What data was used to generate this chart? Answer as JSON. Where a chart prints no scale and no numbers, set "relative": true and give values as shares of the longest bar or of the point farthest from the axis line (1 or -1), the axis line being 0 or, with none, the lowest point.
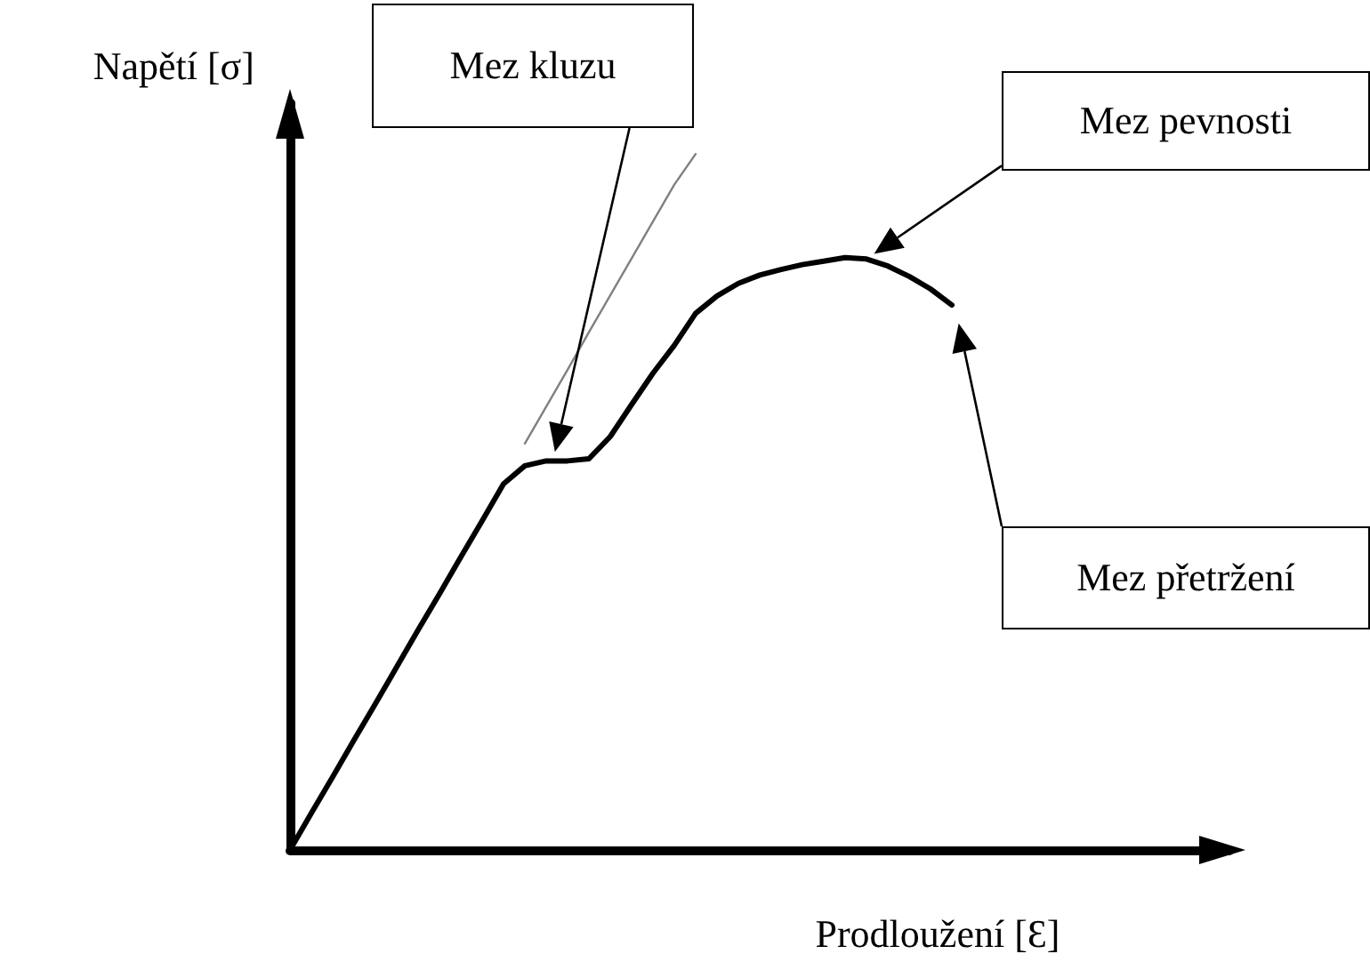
{
  "chart_data": {
    "type": "line",
    "relative": true,
    "xlabel": "Prodloužení [Ɛ]",
    "ylabel": "Napětí [σ]",
    "tick_labels": false,
    "grid": false,
    "marker": "none",
    "line_style": "solid",
    "categories": [
      null,
      null,
      null,
      null,
      null,
      null,
      null,
      null,
      null,
      null,
      null,
      null,
      null,
      null,
      null,
      null,
      null,
      null,
      null,
      null,
      null,
      null,
      null,
      null,
      null,
      null,
      null,
      null,
      null,
      null,
      null,
      null,
      null,
      null,
      null,
      null,
      null,
      null,
      null,
      null,
      null,
      null,
      null,
      null,
      null
    ],
    "series": [
      {
        "color": "#000000",
        "values": [
          0,
          0.053,
          0.105,
          0.158,
          0.21,
          0.263,
          0.316,
          0.368,
          0.421,
          0.473,
          0.526,
          0.552,
          0.559,
          0.559,
          0.562,
          0.594,
          0.64,
          0.685,
          0.725,
          0.771,
          0.796,
          0.814,
          0.826,
          0.834,
          0.841,
          0.846,
          0.851,
          0.849,
          0.839,
          0.824,
          0.806,
          0.783,
          null,
          null,
          null,
          null,
          null,
          null,
          null,
          null,
          null,
          null,
          null,
          null,
          null
        ]
      },
      {
        "color": "#808080",
        "values": [
          null,
          null,
          null,
          null,
          null,
          null,
          null,
          null,
          null,
          null,
          null,
          0.584,
          0.637,
          0.69,
          0.744,
          0.797,
          0.85,
          0.903,
          0.956,
          1.0,
          null,
          null,
          null,
          null,
          null,
          null,
          null,
          null,
          null,
          null,
          null,
          null,
          null,
          null,
          null,
          null,
          null,
          null,
          null,
          null,
          null,
          null,
          null,
          null,
          null
        ]
      }
    ],
    "annotations": [
      "Mez kluzu",
      "Mez pevnosti",
      "Mez přetržení"
    ]
  }
}
